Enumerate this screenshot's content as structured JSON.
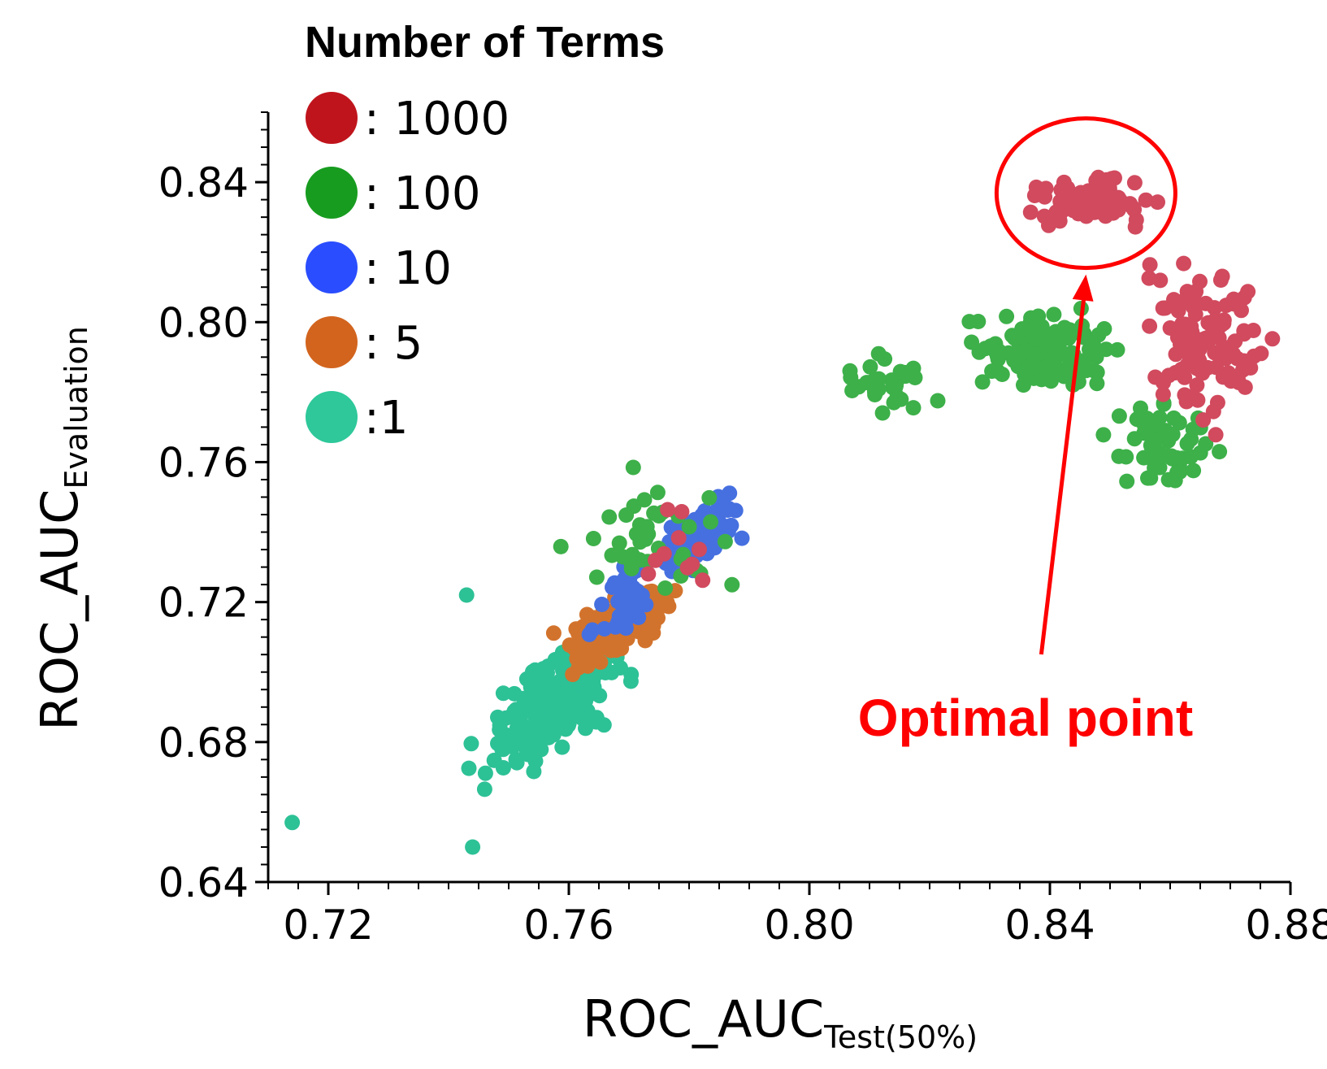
{
  "chart_data": {
    "type": "scatter",
    "title": "",
    "xlabel": "ROC_AUC",
    "xlabel_subscript": "Test(50%)",
    "ylabel": "ROC_AUC",
    "ylabel_subscript": "Evaluation",
    "xlim": [
      0.71,
      0.88
    ],
    "ylim": [
      0.64,
      0.86
    ],
    "xticks": [
      "0.72",
      "0.76",
      "0.80",
      "0.84",
      "0.88"
    ],
    "yticks": [
      "0.64",
      "0.68",
      "0.72",
      "0.76",
      "0.80",
      "0.84"
    ],
    "grid": false,
    "legend": {
      "title": "Number of Terms",
      "position": "top-left",
      "entries": [
        {
          "label": ": 1000",
          "color": "#c0141c"
        },
        {
          "label": ": 100",
          "color": "#179c1f"
        },
        {
          "label": ": 10",
          "color": "#2a4dff"
        },
        {
          "label": ": 5",
          "color": "#d2641e"
        },
        {
          "label": ":1",
          "color": "#2ec89a"
        }
      ]
    },
    "series": [
      {
        "name": "1000",
        "color": "#d14a5e",
        "clusters": [
          {
            "center": [
              0.846,
              0.835
            ],
            "spread": [
              0.009,
              0.006
            ],
            "n": 70
          },
          {
            "center": [
              0.866,
              0.795
            ],
            "spread": [
              0.008,
              0.018
            ],
            "n": 110
          },
          {
            "center": [
              0.779,
              0.736
            ],
            "spread": [
              0.006,
              0.01
            ],
            "n": 10
          }
        ]
      },
      {
        "name": "100",
        "color": "#3db049",
        "clusters": [
          {
            "center": [
              0.84,
              0.792
            ],
            "spread": [
              0.009,
              0.008
            ],
            "n": 120
          },
          {
            "center": [
              0.858,
              0.765
            ],
            "spread": [
              0.006,
              0.01
            ],
            "n": 60
          },
          {
            "center": [
              0.812,
              0.782
            ],
            "spread": [
              0.007,
              0.008
            ],
            "n": 30
          },
          {
            "center": [
              0.775,
              0.738
            ],
            "spread": [
              0.01,
              0.012
            ],
            "n": 40
          }
        ]
      },
      {
        "name": "10",
        "color": "#4670e0",
        "clusters": [
          {
            "center": [
              0.782,
              0.74
            ],
            "spread": [
              0.005,
              0.008
            ],
            "n": 130
          },
          {
            "center": [
              0.77,
              0.72
            ],
            "spread": [
              0.006,
              0.01
            ],
            "n": 40
          }
        ]
      },
      {
        "name": "5",
        "color": "#d2732d",
        "clusters": [
          {
            "center": [
              0.768,
              0.714
            ],
            "spread": [
              0.007,
              0.009
            ],
            "n": 160
          }
        ]
      },
      {
        "name": "1",
        "color": "#2dc196",
        "clusters": [
          {
            "center": [
              0.757,
              0.69
            ],
            "spread": [
              0.009,
              0.013
            ],
            "n": 210
          }
        ],
        "outliers": [
          [
            0.714,
            0.657
          ],
          [
            0.743,
            0.722
          ],
          [
            0.744,
            0.65
          ]
        ]
      }
    ],
    "annotation": {
      "text": "Optimal point",
      "target": [
        0.846,
        0.835
      ],
      "color": "#ff0000"
    }
  }
}
